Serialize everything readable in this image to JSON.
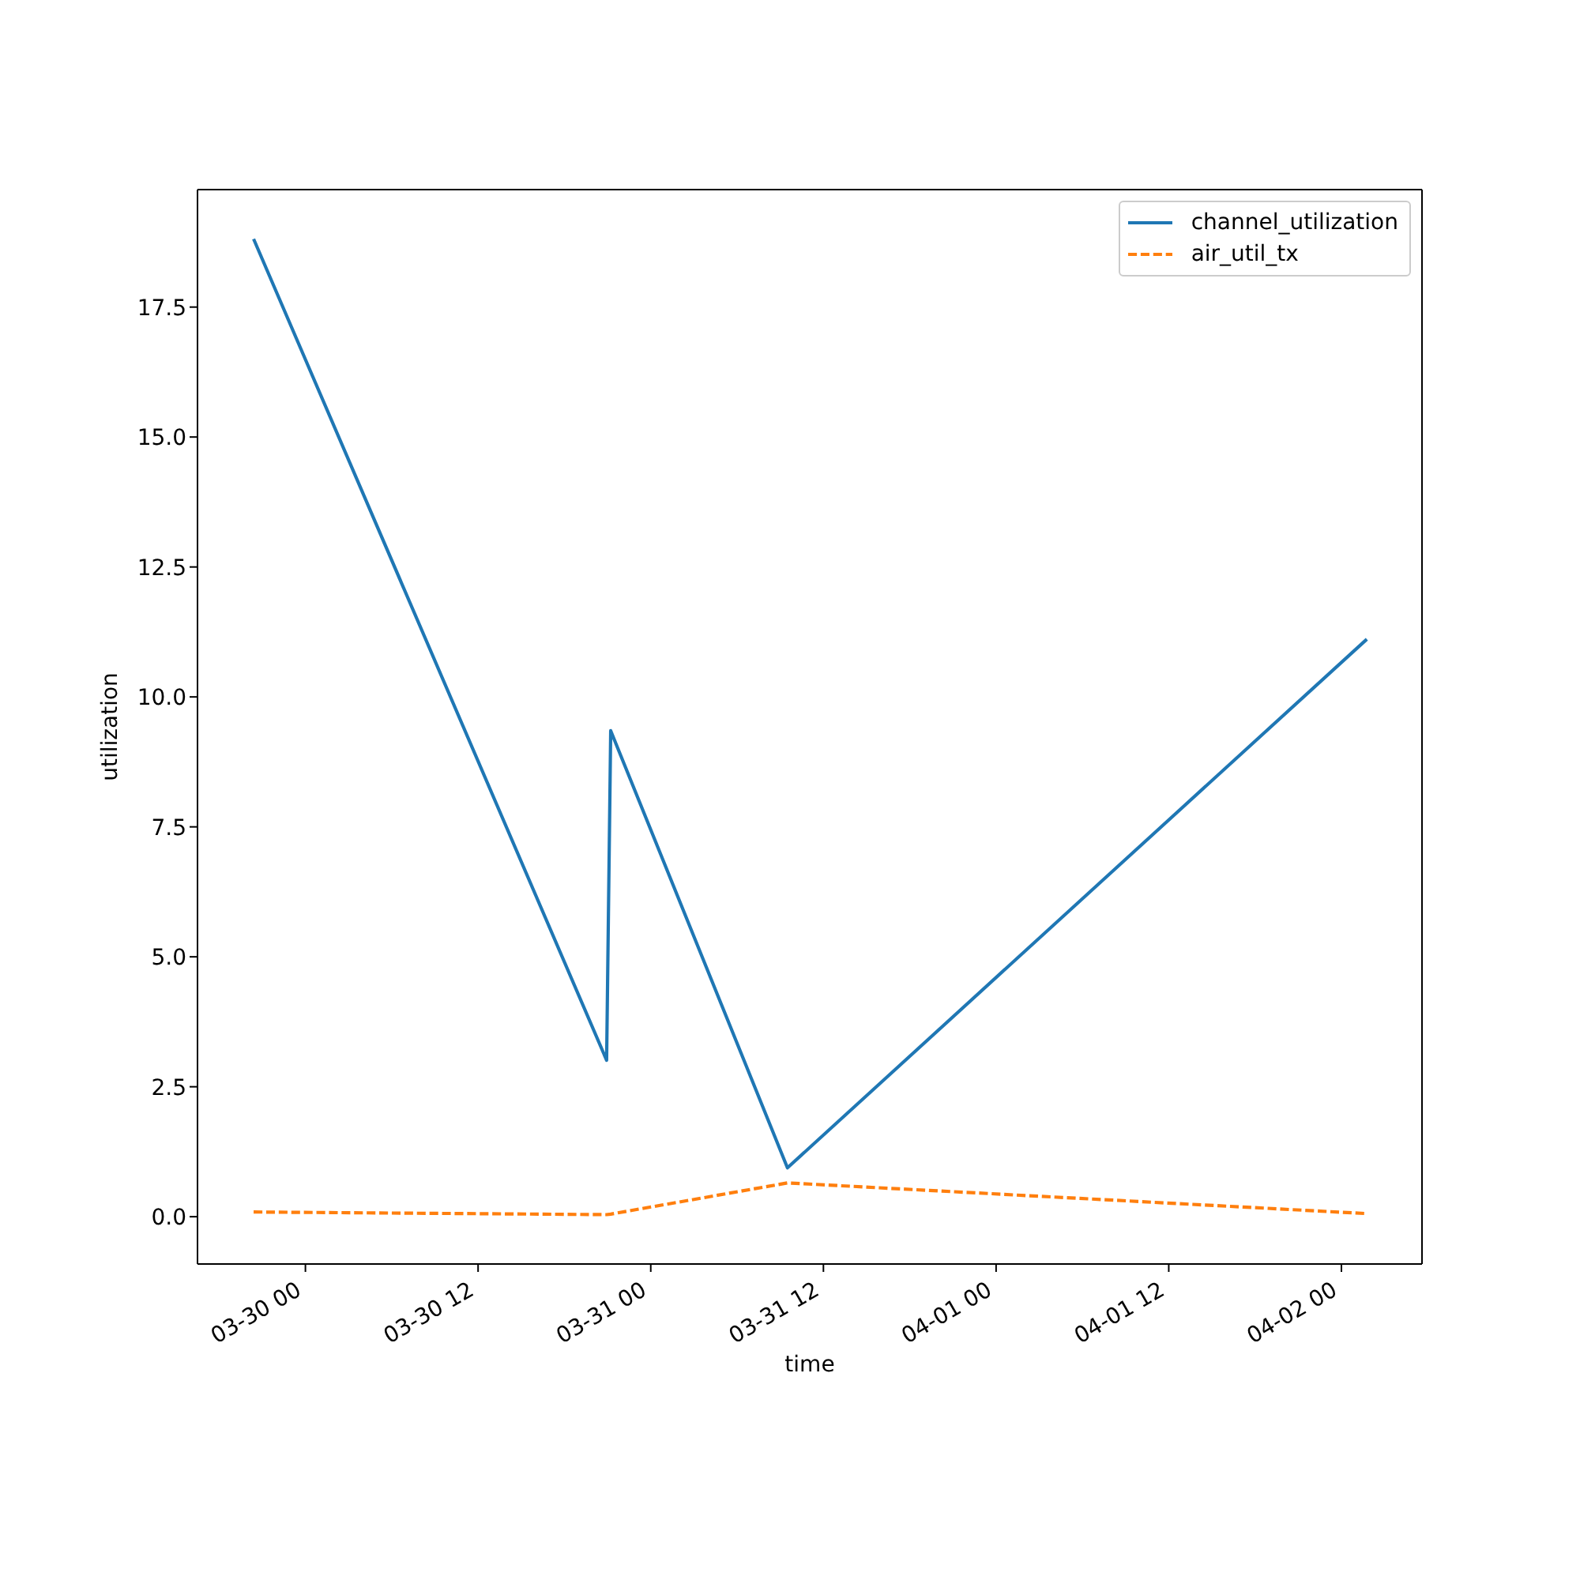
{
  "chart_data": {
    "type": "line",
    "xlabel": "time",
    "ylabel": "utilization",
    "x": [
      "--03-29T20:24",
      "--03-30T20:56",
      "--03-30T21:13",
      "--03-31T09:30",
      "--04-02T01:46"
    ],
    "series": [
      {
        "name": "channel_utilization",
        "color": "#1f77b4",
        "line_style": "solid",
        "values": [
          18.81,
          3.01,
          9.35,
          0.94,
          11.11
        ]
      },
      {
        "name": "air_util_tx",
        "color": "#ff7f0e",
        "line_style": "dashed",
        "values": [
          0.09,
          0.04,
          0.05,
          0.65,
          0.06
        ]
      }
    ],
    "xlim": [
      "--03-29T16:30",
      "--04-02T05:36"
    ],
    "xticks": [
      {
        "value": "--03-30T00:00",
        "label": "03-30 00"
      },
      {
        "value": "--03-30T12:00",
        "label": "03-30 12"
      },
      {
        "value": "--03-31T00:00",
        "label": "03-31 00"
      },
      {
        "value": "--03-31T12:00",
        "label": "03-31 12"
      },
      {
        "value": "--04-01T00:00",
        "label": "04-01 00"
      },
      {
        "value": "--04-01T12:00",
        "label": "04-01 12"
      },
      {
        "value": "--04-02T00:00",
        "label": "04-02 00"
      }
    ],
    "ylim": [
      -0.91,
      19.76
    ],
    "yticks": [
      {
        "value": 0,
        "label": "0.0"
      },
      2.5,
      {
        "value": 5,
        "label": "5.0"
      },
      7.5,
      {
        "value": 10,
        "label": "10.0"
      },
      12.5,
      {
        "value": 15,
        "label": "15.0"
      },
      17.5
    ],
    "legend": "top right"
  }
}
